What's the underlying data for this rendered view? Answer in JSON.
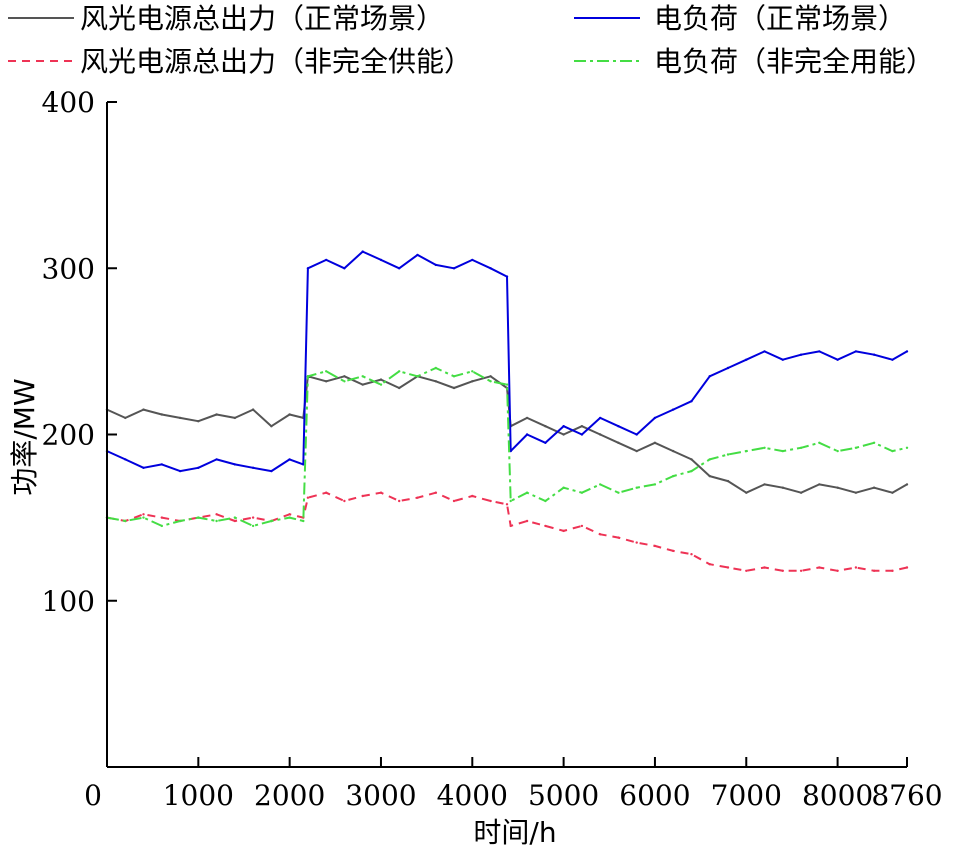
{
  "chart_data": {
    "type": "line",
    "xlabel": "时间/h",
    "ylabel": "功率/MW",
    "xlim": [
      0,
      8760
    ],
    "ylim": [
      0,
      400
    ],
    "xticks": [
      0,
      1000,
      2000,
      3000,
      4000,
      5000,
      6000,
      7000,
      8000,
      8760
    ],
    "yticks": [
      100,
      200,
      300,
      400
    ],
    "legend_position": "top",
    "legend_entries": [
      "风光电源总出力（正常场景）",
      "电负荷（正常场景）",
      "风光电源总出力（非完全供能）",
      "电负荷（非完全用能）"
    ],
    "series": [
      {
        "name": "风光电源总出力（正常场景）",
        "color": "#555555",
        "style": "solid",
        "x": [
          0,
          200,
          400,
          600,
          800,
          1000,
          1200,
          1400,
          1600,
          1800,
          2000,
          2150,
          2200,
          2400,
          2600,
          2800,
          3000,
          3200,
          3400,
          3600,
          3800,
          4000,
          4200,
          4380,
          4420,
          4600,
          4800,
          5000,
          5200,
          5400,
          5600,
          5800,
          6000,
          6200,
          6400,
          6600,
          6800,
          7000,
          7200,
          7400,
          7600,
          7800,
          8000,
          8200,
          8400,
          8600,
          8760
        ],
        "y": [
          215,
          210,
          215,
          212,
          210,
          208,
          212,
          210,
          215,
          205,
          212,
          210,
          235,
          232,
          235,
          230,
          233,
          228,
          235,
          232,
          228,
          232,
          235,
          228,
          205,
          210,
          205,
          200,
          205,
          200,
          195,
          190,
          195,
          190,
          185,
          175,
          172,
          165,
          170,
          168,
          165,
          170,
          168,
          165,
          168,
          165,
          170
        ]
      },
      {
        "name": "电负荷（正常场景）",
        "color": "#0000dd",
        "style": "solid",
        "x": [
          0,
          200,
          400,
          600,
          800,
          1000,
          1200,
          1400,
          1600,
          1800,
          2000,
          2150,
          2200,
          2400,
          2600,
          2800,
          3000,
          3200,
          3400,
          3600,
          3800,
          4000,
          4200,
          4380,
          4420,
          4600,
          4800,
          5000,
          5200,
          5400,
          5600,
          5800,
          6000,
          6200,
          6400,
          6600,
          6800,
          7000,
          7200,
          7400,
          7600,
          7800,
          8000,
          8200,
          8400,
          8600,
          8760
        ],
        "y": [
          190,
          185,
          180,
          182,
          178,
          180,
          185,
          182,
          180,
          178,
          185,
          182,
          300,
          305,
          300,
          310,
          305,
          300,
          308,
          302,
          300,
          305,
          300,
          295,
          190,
          200,
          195,
          205,
          200,
          210,
          205,
          200,
          210,
          215,
          220,
          235,
          240,
          245,
          250,
          245,
          248,
          250,
          245,
          250,
          248,
          245,
          250
        ]
      },
      {
        "name": "风光电源总出力（非完全供能）",
        "color": "#ee3355",
        "style": "dashed",
        "x": [
          0,
          200,
          400,
          600,
          800,
          1000,
          1200,
          1400,
          1600,
          1800,
          2000,
          2150,
          2200,
          2400,
          2600,
          2800,
          3000,
          3200,
          3400,
          3600,
          3800,
          4000,
          4200,
          4380,
          4420,
          4600,
          4800,
          5000,
          5200,
          5400,
          5600,
          5800,
          6000,
          6200,
          6400,
          6600,
          6800,
          7000,
          7200,
          7400,
          7600,
          7800,
          8000,
          8200,
          8400,
          8600,
          8760
        ],
        "y": [
          150,
          148,
          152,
          150,
          148,
          150,
          152,
          148,
          150,
          148,
          152,
          150,
          162,
          165,
          160,
          163,
          165,
          160,
          162,
          165,
          160,
          163,
          160,
          158,
          145,
          148,
          145,
          142,
          145,
          140,
          138,
          135,
          133,
          130,
          128,
          122,
          120,
          118,
          120,
          118,
          118,
          120,
          118,
          120,
          118,
          118,
          120
        ]
      },
      {
        "name": "电负荷（非完全用能）",
        "color": "#44dd44",
        "style": "dashdot",
        "x": [
          0,
          200,
          400,
          600,
          800,
          1000,
          1200,
          1400,
          1600,
          1800,
          2000,
          2150,
          2200,
          2400,
          2600,
          2800,
          3000,
          3200,
          3400,
          3600,
          3800,
          4000,
          4200,
          4380,
          4420,
          4600,
          4800,
          5000,
          5200,
          5400,
          5600,
          5800,
          6000,
          6200,
          6400,
          6600,
          6800,
          7000,
          7200,
          7400,
          7600,
          7800,
          8000,
          8200,
          8400,
          8600,
          8760
        ],
        "y": [
          150,
          148,
          150,
          145,
          148,
          150,
          148,
          150,
          145,
          148,
          150,
          148,
          235,
          238,
          232,
          235,
          230,
          238,
          235,
          240,
          235,
          238,
          232,
          230,
          160,
          165,
          160,
          168,
          165,
          170,
          165,
          168,
          170,
          175,
          178,
          185,
          188,
          190,
          192,
          190,
          192,
          195,
          190,
          192,
          195,
          190,
          192
        ]
      }
    ]
  }
}
